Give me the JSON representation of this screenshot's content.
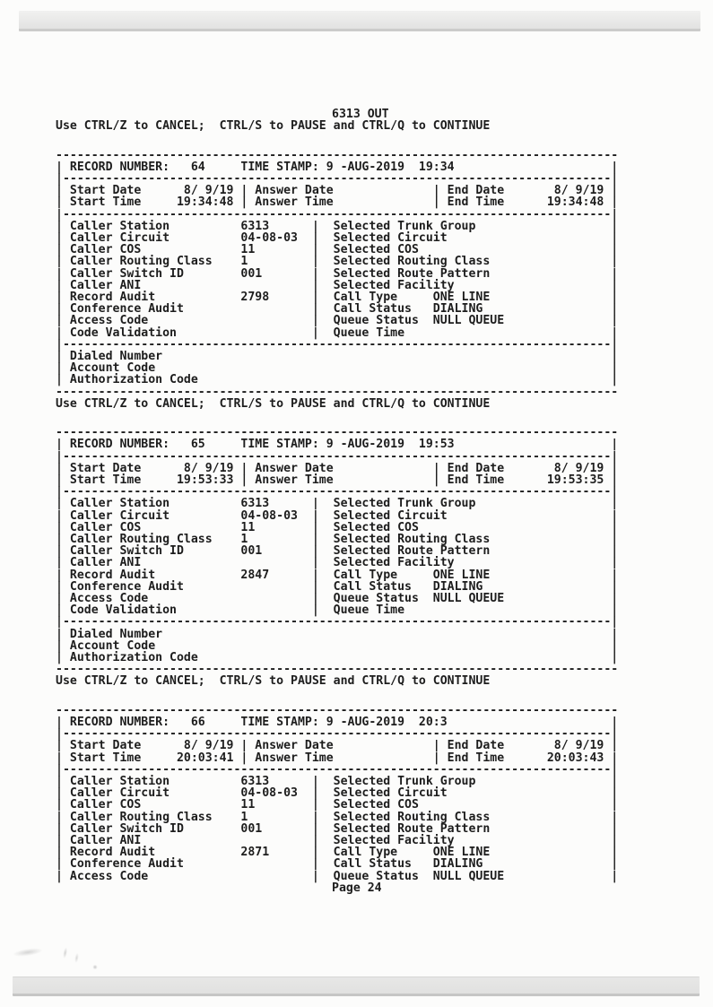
{
  "page": {
    "title": "6313 OUT",
    "ctrl_line": "Use CTRL/Z to CANCEL;  CTRL/S to PAUSE and CTRL/Q to CONTINUE",
    "footer": "Page 24"
  },
  "labels": {
    "record_number": "RECORD NUMBER:",
    "time_stamp": "TIME STAMP:",
    "start_date": "Start Date",
    "start_time": "Start Time",
    "answer_date": "Answer Date",
    "answer_time": "Answer Time",
    "end_date": "End Date",
    "end_time": "End Time",
    "caller_station": "Caller Station",
    "caller_circuit": "Caller Circuit",
    "caller_cos": "Caller COS",
    "caller_routing_class": "Caller Routing Class",
    "caller_switch_id": "Caller Switch ID",
    "caller_ani": "Caller ANI",
    "record_audit": "Record Audit",
    "conference_audit": "Conference Audit",
    "access_code": "Access Code",
    "code_validation": "Code Validation",
    "selected_trunk_group": "Selected Trunk Group",
    "selected_circuit": "Selected Circuit",
    "selected_cos": "Selected COS",
    "selected_routing_class": "Selected Routing Class",
    "selected_route_pattern": "Selected Route Pattern",
    "selected_facility": "Selected Facility",
    "call_type": "Call Type",
    "call_status": "Call Status",
    "queue_status": "Queue Status",
    "queue_time": "Queue Time",
    "dialed_number": "Dialed Number",
    "account_code": "Account Code",
    "authorization_code": "Authorization Code"
  },
  "records": [
    {
      "record_number": "64",
      "time_stamp": "9 -AUG-2019  19:34",
      "start_date": "8/ 9/19",
      "start_time": "19:34:48",
      "answer_date": "",
      "answer_time": "",
      "end_date": "8/ 9/19",
      "end_time": "19:34:48",
      "caller_station": "6313",
      "caller_circuit": "04-08-03",
      "caller_cos": "11",
      "caller_routing_class": "1",
      "caller_switch_id": "001",
      "caller_ani": "",
      "record_audit": "2798",
      "conference_audit": "",
      "access_code": "",
      "code_validation": "",
      "selected_trunk_group": "",
      "selected_circuit": "",
      "selected_cos": "",
      "selected_routing_class": "",
      "selected_route_pattern": "",
      "selected_facility": "",
      "call_type": "ONE LINE",
      "call_status": "DIALING",
      "queue_status": "NULL QUEUE",
      "queue_time": "",
      "dialed_number": "",
      "account_code": "",
      "authorization_code": "",
      "truncated": false
    },
    {
      "record_number": "65",
      "time_stamp": "9 -AUG-2019  19:53",
      "start_date": "8/ 9/19",
      "start_time": "19:53:33",
      "answer_date": "",
      "answer_time": "",
      "end_date": "8/ 9/19",
      "end_time": "19:53:35",
      "caller_station": "6313",
      "caller_circuit": "04-08-03",
      "caller_cos": "11",
      "caller_routing_class": "1",
      "caller_switch_id": "001",
      "caller_ani": "",
      "record_audit": "2847",
      "conference_audit": "",
      "access_code": "",
      "code_validation": "",
      "selected_trunk_group": "",
      "selected_circuit": "",
      "selected_cos": "",
      "selected_routing_class": "",
      "selected_route_pattern": "",
      "selected_facility": "",
      "call_type": "ONE LINE",
      "call_status": "DIALING",
      "queue_status": "NULL QUEUE",
      "queue_time": "",
      "dialed_number": "",
      "account_code": "",
      "authorization_code": "",
      "truncated": false
    },
    {
      "record_number": "66",
      "time_stamp": "9 -AUG-2019  20:3",
      "start_date": "8/ 9/19",
      "start_time": "20:03:41",
      "answer_date": "",
      "answer_time": "",
      "end_date": "8/ 9/19",
      "end_time": "20:03:43",
      "caller_station": "6313",
      "caller_circuit": "04-08-03",
      "caller_cos": "11",
      "caller_routing_class": "1",
      "caller_switch_id": "001",
      "caller_ani": "",
      "record_audit": "2871",
      "conference_audit": "",
      "access_code": "",
      "selected_trunk_group": "",
      "selected_circuit": "",
      "selected_cos": "",
      "selected_routing_class": "",
      "selected_route_pattern": "",
      "selected_facility": "",
      "call_type": "ONE LINE",
      "call_status": "DIALING",
      "queue_status": "NULL QUEUE",
      "truncated": true
    }
  ]
}
